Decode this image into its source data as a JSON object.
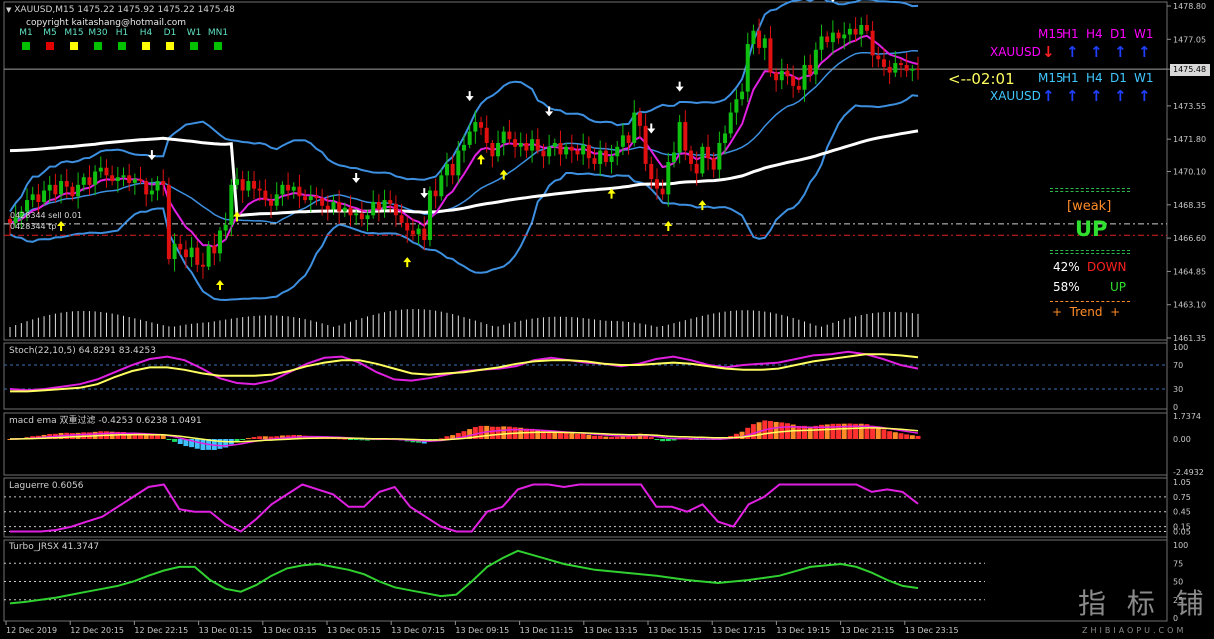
{
  "header": {
    "symbol_line": "XAUUSD,M15  1475.22 1475.92 1475.22 1475.48",
    "copyright": "copyright kaitashang@hotmail.com",
    "timeframes": [
      "M1",
      "M5",
      "M15",
      "M30",
      "H1",
      "H4",
      "D1",
      "W1",
      "MN1"
    ],
    "timeframe_square_colors": [
      "#00c000",
      "#e00000",
      "#ffff00",
      "#00c000",
      "#00c000",
      "#ffff00",
      "#ffff00",
      "#00c000",
      "#00c000"
    ]
  },
  "trend_table": {
    "row1": {
      "label": "XAUUSD",
      "label_color": "#ff00ff",
      "tfs": [
        "M15",
        "H1",
        "H4",
        "D1",
        "W1"
      ],
      "tf_color": "#ff00ff",
      "arrows": [
        "down",
        "up",
        "up",
        "up",
        "up"
      ]
    },
    "row2": {
      "label": "XAUUSD",
      "label_color": "#40c8ff",
      "tfs": [
        "M15",
        "H1",
        "H4",
        "D1",
        "W1"
      ],
      "tf_color": "#40c8ff",
      "arrows": [
        "up",
        "up",
        "up",
        "up",
        "up"
      ]
    },
    "countdown": "<--02:01"
  },
  "signal_panel": {
    "strength": "[weak]",
    "direction": "UP",
    "down_pct": "42%",
    "down_label": "DOWN",
    "up_pct": "58%",
    "up_label": "UP",
    "trend": "+  Trend  +"
  },
  "order_labels": [
    "0428344 sell 0.01",
    "0428344 tp"
  ],
  "price_tag": "1475.48",
  "chart_data": [
    {
      "type": "candlestick",
      "title": "XAUUSD,M15",
      "ylim": [
        1461.35,
        1478.8
      ],
      "y_ticks": [
        "1478.80",
        "1477.05",
        "1475.48",
        "1473.55",
        "1471.80",
        "1470.10",
        "1468.35",
        "1466.60",
        "1464.85",
        "1463.10",
        "1461.35"
      ],
      "x_ticks": [
        "12 Dec 2019",
        "12 Dec 20:15",
        "12 Dec 22:15",
        "13 Dec 01:15",
        "13 Dec 03:15",
        "13 Dec 05:15",
        "13 Dec 07:15",
        "13 Dec 09:15",
        "13 Dec 11:15",
        "13 Dec 13:15",
        "13 Dec 15:15",
        "13 Dec 17:15",
        "13 Dec 19:15",
        "13 Dec 21:15",
        "13 Dec 23:15"
      ],
      "close": [
        1467.4,
        1467.7,
        1468.0,
        1468.6,
        1468.9,
        1468.5,
        1469.1,
        1469.4,
        1468.9,
        1469.6,
        1469.3,
        1468.8,
        1469.4,
        1469.8,
        1469.4,
        1470.1,
        1470.3,
        1469.9,
        1469.6,
        1469.8,
        1469.9,
        1469.5,
        1469.7,
        1469.6,
        1468.9,
        1469.1,
        1469.6,
        1469.4,
        1465.5,
        1466.3,
        1466.0,
        1465.6,
        1466.1,
        1465.2,
        1465.1,
        1466.2,
        1465.8,
        1467.0,
        1467.3,
        1469.4,
        1469.7,
        1469.1,
        1469.6,
        1469.2,
        1469.1,
        1468.6,
        1468.3,
        1468.9,
        1469.4,
        1469.1,
        1469.3,
        1468.8,
        1468.6,
        1468.8,
        1468.7,
        1468.3,
        1468.1,
        1468.5,
        1468.0,
        1468.2,
        1467.8,
        1467.9,
        1467.6,
        1467.8,
        1468.5,
        1468.1,
        1468.6,
        1468.4,
        1467.8,
        1467.4,
        1467.0,
        1466.8,
        1467.1,
        1466.5,
        1469.1,
        1468.8,
        1469.9,
        1470.5,
        1469.9,
        1471.2,
        1471.5,
        1472.2,
        1472.7,
        1472.4,
        1471.6,
        1470.9,
        1471.6,
        1472.2,
        1471.8,
        1471.4,
        1471.6,
        1471.2,
        1471.8,
        1471.2,
        1470.9,
        1471.4,
        1471.6,
        1471.0,
        1471.4,
        1471.2,
        1471.0,
        1471.5,
        1470.8,
        1470.5,
        1471.2,
        1470.6,
        1470.9,
        1471.4,
        1472.0,
        1471.6,
        1473.2,
        1472.5,
        1470.5,
        1469.7,
        1469.2,
        1468.9,
        1470.6,
        1471.1,
        1472.7,
        1471.2,
        1470.5,
        1470.0,
        1471.4,
        1470.8,
        1470.2,
        1471.6,
        1472.1,
        1473.2,
        1473.9,
        1474.3,
        1476.8,
        1477.5,
        1476.6,
        1477.1,
        1475.3,
        1474.9,
        1475.4,
        1475.1,
        1474.6,
        1474.4,
        1475.7,
        1475.2,
        1476.5,
        1477.2,
        1476.9,
        1477.4,
        1477.1,
        1477.3,
        1477.6,
        1477.3,
        1477.8,
        1477.5,
        1476.2,
        1476.0,
        1475.6,
        1475.3,
        1475.8,
        1475.7,
        1475.4,
        1475.5,
        1475.48
      ],
      "overlays": [
        "Bollinger Bands (blue)",
        "Moving average (magenta)",
        "Moving average (white)"
      ],
      "signal_arrows": {
        "up": 9,
        "down": 9
      },
      "volume": "histogram (white)"
    },
    {
      "type": "line",
      "title": "Stoch(22,10,5) 64.8291 83.4253",
      "ylim": [
        0,
        100
      ],
      "y_ticks": [
        "100",
        "70",
        "30",
        "0"
      ],
      "series": [
        {
          "values": [
            30,
            28,
            30,
            34,
            38,
            46,
            58,
            70,
            80,
            84,
            78,
            64,
            48,
            40,
            38,
            44,
            58,
            72,
            82,
            84,
            74,
            58,
            46,
            44,
            48,
            54,
            60,
            62,
            64,
            68,
            78,
            82,
            78,
            74,
            72,
            68,
            72,
            80,
            84,
            78,
            70,
            66,
            70,
            72,
            74,
            80,
            86,
            88,
            92,
            88,
            80,
            70,
            64
          ]
        },
        {
          "values": [
            26,
            26,
            28,
            30,
            32,
            38,
            50,
            60,
            66,
            66,
            62,
            56,
            52,
            52,
            52,
            54,
            60,
            68,
            74,
            78,
            78,
            72,
            64,
            56,
            54,
            56,
            58,
            62,
            66,
            72,
            76,
            78,
            78,
            76,
            72,
            70,
            70,
            72,
            74,
            72,
            68,
            64,
            62,
            62,
            64,
            70,
            76,
            80,
            84,
            88,
            88,
            86,
            83
          ]
        }
      ]
    },
    {
      "type": "bar",
      "title": "macd ema 双重过滤 -0.4253 0.6238 1.0491",
      "ylim": [
        -2.4932,
        1.7374
      ],
      "y_ticks": [
        "1.7374",
        "0.00",
        "-2.4932"
      ]
    },
    {
      "type": "line",
      "title": "Laguerre 0.6056",
      "ylim": [
        0,
        1.05
      ],
      "y_ticks": [
        "1.05",
        "0.75",
        "0.45",
        "0.15",
        "0.05"
      ],
      "series": [
        {
          "values": [
            0.05,
            0.05,
            0.05,
            0.08,
            0.15,
            0.25,
            0.35,
            0.55,
            0.75,
            0.95,
            1.0,
            0.5,
            0.45,
            0.45,
            0.2,
            0.05,
            0.3,
            0.6,
            0.8,
            1.0,
            0.9,
            0.8,
            0.55,
            0.55,
            0.85,
            0.95,
            0.55,
            0.35,
            0.15,
            0.05,
            0.05,
            0.45,
            0.55,
            0.9,
            1.0,
            1.0,
            0.95,
            1.0,
            1.0,
            1.0,
            1.0,
            1.0,
            0.55,
            0.55,
            0.45,
            0.6,
            0.25,
            0.15,
            0.6,
            0.75,
            1.0,
            1.0,
            1.0,
            1.0,
            1.0,
            1.0,
            0.85,
            0.9,
            0.85,
            0.61
          ]
        }
      ]
    },
    {
      "type": "line",
      "title": "Turbo_JRSX 41.3747",
      "ylim": [
        0,
        100
      ],
      "y_ticks": [
        "100",
        "75",
        "50",
        "25",
        "0"
      ],
      "series": [
        {
          "values": [
            20,
            22,
            25,
            28,
            32,
            36,
            40,
            44,
            50,
            58,
            65,
            70,
            70,
            52,
            40,
            36,
            45,
            58,
            68,
            72,
            74,
            70,
            66,
            60,
            50,
            42,
            38,
            34,
            30,
            32,
            50,
            70,
            82,
            92,
            86,
            80,
            74,
            70,
            66,
            64,
            62,
            60,
            58,
            55,
            52,
            50,
            48,
            50,
            52,
            55,
            58,
            64,
            70,
            72,
            74,
            70,
            62,
            52,
            44,
            41
          ]
        }
      ]
    }
  ]
}
